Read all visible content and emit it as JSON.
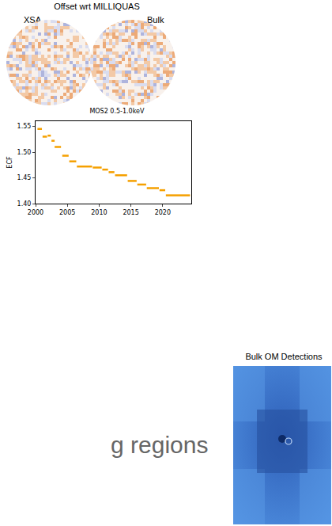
{
  "top_panel": {
    "title": "Offset wrt MILLIQUAS",
    "labels": [
      "XSA",
      "Bulk"
    ]
  },
  "chart_data": {
    "type": "step",
    "title": "MOS2 0.5-1.0keV",
    "y_label": "ECF",
    "color": "#f5a000",
    "x_start": [
      2000.3,
      2001.1,
      2001.9,
      2002.5,
      2003.0,
      2004.2,
      2005.3,
      2006.5,
      2009.0,
      2010.5,
      2011.5,
      2012.5,
      2014.5,
      2016.0,
      2017.5,
      2019.5,
      2020.5
    ],
    "x_end": [
      2001.0,
      2001.8,
      2002.4,
      2003.0,
      2004.0,
      2005.2,
      2006.4,
      2008.9,
      2010.4,
      2011.4,
      2012.4,
      2014.4,
      2015.9,
      2017.4,
      2019.4,
      2020.4,
      2024.3
    ],
    "values": [
      1.545,
      1.53,
      1.532,
      1.522,
      1.51,
      1.493,
      1.482,
      1.472,
      1.47,
      1.466,
      1.461,
      1.455,
      1.444,
      1.437,
      1.43,
      1.426,
      1.416
    ],
    "xlim": [
      2000,
      2024.5
    ],
    "ylim": [
      1.4,
      1.56
    ],
    "xticks": [
      2000,
      2005,
      2010,
      2015,
      2020
    ],
    "yticks": [
      {
        "value": 1.4,
        "label": "1.40"
      },
      1.45,
      {
        "value": 1.5,
        "label": "1.50"
      },
      1.55
    ],
    "grid": false
  },
  "image_panel": {
    "title": "Bulk OM Detections"
  },
  "text_fragments": [
    "g regions"
  ]
}
